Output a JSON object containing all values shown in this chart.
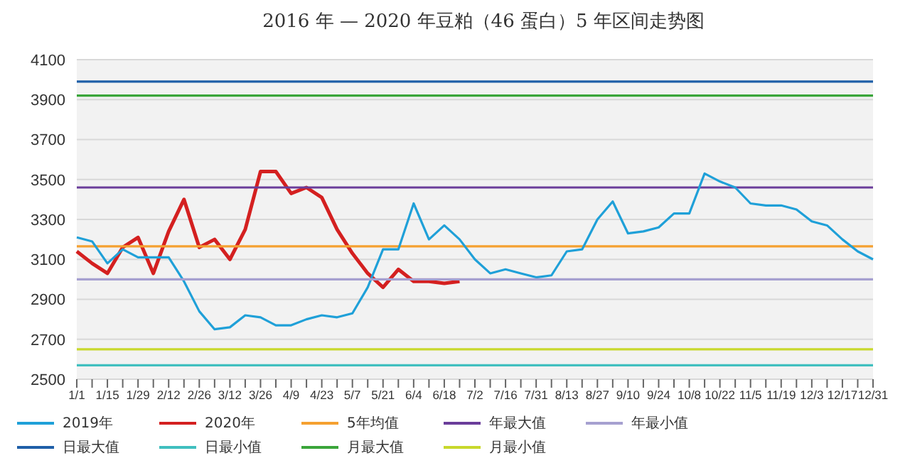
{
  "chart_data": {
    "type": "line",
    "title": "2016 年 — 2020 年豆粕（46 蛋白）5 年区间走势图",
    "categories": [
      "1/1",
      null,
      "1/15",
      null,
      "1/29",
      null,
      "2/12",
      null,
      "2/26",
      null,
      "3/12",
      null,
      "3/26",
      null,
      "4/9",
      null,
      "4/23",
      null,
      "5/7",
      null,
      "5/21",
      null,
      "6/4",
      null,
      "6/18",
      null,
      "7/2",
      null,
      "7/16",
      null,
      "7/31",
      null,
      "8/13",
      null,
      "8/27",
      null,
      "9/10",
      null,
      "9/24",
      null,
      "10/8",
      null,
      "10/22",
      null,
      "11/5",
      null,
      "11/19",
      null,
      "12/3",
      null,
      "12/17",
      null,
      "12/31"
    ],
    "series": [
      {
        "name": "2020年",
        "color": "#d42020",
        "values": [
          3140,
          3080,
          3030,
          3160,
          3210,
          3030,
          3240,
          3400,
          3160,
          3200,
          3100,
          3250,
          3540,
          3540,
          3430,
          3460,
          3410,
          3250,
          3130,
          3030,
          2960,
          3050,
          2990,
          2990,
          2980,
          2990,
          null,
          null,
          null,
          null,
          null,
          null,
          null,
          null,
          null,
          null,
          null,
          null,
          null,
          null,
          null,
          null,
          null,
          null,
          null,
          null,
          null,
          null,
          null,
          null,
          null,
          null,
          null
        ]
      },
      {
        "name": "日最大值",
        "color": "#1f5fa8",
        "values": [
          3990,
          3990,
          3990,
          3990,
          3990,
          3990,
          3990,
          3990,
          3990,
          3990,
          3990,
          3990,
          3990,
          3990,
          3990,
          3990,
          3990,
          3990,
          3990,
          3990,
          3990,
          3990,
          3990,
          3990,
          3990,
          3990,
          3990,
          3990,
          3990,
          3990,
          3990,
          3990,
          3990,
          3990,
          3990,
          3990,
          3990,
          3990,
          3990,
          3990,
          3990,
          3990,
          3990,
          3990,
          3990,
          3990,
          3990,
          3990,
          3990,
          3990,
          3990,
          3990,
          3990
        ]
      },
      {
        "name": "月最大值",
        "color": "#3aa53a",
        "values": [
          3920,
          3920,
          3920,
          3920,
          3920,
          3920,
          3920,
          3920,
          3920,
          3920,
          3920,
          3920,
          3920,
          3920,
          3920,
          3920,
          3920,
          3920,
          3920,
          3920,
          3920,
          3920,
          3920,
          3920,
          3920,
          3920,
          3920,
          3920,
          3920,
          3920,
          3920,
          3920,
          3920,
          3920,
          3920,
          3920,
          3920,
          3920,
          3920,
          3920,
          3920,
          3920,
          3920,
          3920,
          3920,
          3920,
          3920,
          3920,
          3920,
          3920,
          3920,
          3920,
          3920
        ]
      },
      {
        "name": "年最大值",
        "color": "#6a3d9a",
        "values": [
          3460,
          3460,
          3460,
          3460,
          3460,
          3460,
          3460,
          3460,
          3460,
          3460,
          3460,
          3460,
          3460,
          3460,
          3460,
          3460,
          3460,
          3460,
          3460,
          3460,
          3460,
          3460,
          3460,
          3460,
          3460,
          3460,
          3460,
          3460,
          3460,
          3460,
          3460,
          3460,
          3460,
          3460,
          3460,
          3460,
          3460,
          3460,
          3460,
          3460,
          3460,
          3460,
          3460,
          3460,
          3460,
          3460,
          3460,
          3460,
          3460,
          3460,
          3460,
          3460,
          3460
        ]
      },
      {
        "name": "5年均值",
        "color": "#f5a030",
        "values": [
          3165,
          3165,
          3165,
          3165,
          3165,
          3165,
          3165,
          3165,
          3165,
          3165,
          3165,
          3165,
          3165,
          3165,
          3165,
          3165,
          3165,
          3165,
          3165,
          3165,
          3165,
          3165,
          3165,
          3165,
          3165,
          3165,
          3165,
          3165,
          3165,
          3165,
          3165,
          3165,
          3165,
          3165,
          3165,
          3165,
          3165,
          3165,
          3165,
          3165,
          3165,
          3165,
          3165,
          3165,
          3165,
          3165,
          3165,
          3165,
          3165,
          3165,
          3165,
          3165,
          3165
        ]
      },
      {
        "name": "2019年",
        "color": "#1fa0d8",
        "values": [
          3210,
          3190,
          3080,
          3150,
          3110,
          3110,
          3110,
          2990,
          2840,
          2750,
          2760,
          2820,
          2810,
          2770,
          2770,
          2800,
          2820,
          2810,
          2830,
          2960,
          3150,
          3150,
          3380,
          3200,
          3270,
          3200,
          3100,
          3030,
          3050,
          3030,
          3010,
          3020,
          3140,
          3150,
          3300,
          3390,
          3230,
          3240,
          3260,
          3330,
          3330,
          3530,
          3490,
          3460,
          3380,
          3370,
          3370,
          3350,
          3290,
          3270,
          3200,
          3140,
          3100
        ]
      },
      {
        "name": "日最小值",
        "color": "#40bfbf",
        "values": [
          2570,
          2570,
          2570,
          2570,
          2570,
          2570,
          2570,
          2570,
          2570,
          2570,
          2570,
          2570,
          2570,
          2570,
          2570,
          2570,
          2570,
          2570,
          2570,
          2570,
          2570,
          2570,
          2570,
          2570,
          2570,
          2570,
          2570,
          2570,
          2570,
          2570,
          2570,
          2570,
          2570,
          2570,
          2570,
          2570,
          2570,
          2570,
          2570,
          2570,
          2570,
          2570,
          2570,
          2570,
          2570,
          2570,
          2570,
          2570,
          2570,
          2570,
          2570,
          2570,
          2570
        ]
      },
      {
        "name": "月最小值",
        "color": "#c8d82c",
        "values": [
          2650,
          2650,
          2650,
          2650,
          2650,
          2650,
          2650,
          2650,
          2650,
          2650,
          2650,
          2650,
          2650,
          2650,
          2650,
          2650,
          2650,
          2650,
          2650,
          2650,
          2650,
          2650,
          2650,
          2650,
          2650,
          2650,
          2650,
          2650,
          2650,
          2650,
          2650,
          2650,
          2650,
          2650,
          2650,
          2650,
          2650,
          2650,
          2650,
          2650,
          2650,
          2650,
          2650,
          2650,
          2650,
          2650,
          2650,
          2650,
          2650,
          2650,
          2650,
          2650,
          2650
        ]
      },
      {
        "name": "年最小值",
        "color": "#a6a0d0",
        "values": [
          3000,
          3000,
          3000,
          3000,
          3000,
          3000,
          3000,
          3000,
          3000,
          3000,
          3000,
          3000,
          3000,
          3000,
          3000,
          3000,
          3000,
          3000,
          3000,
          3000,
          3000,
          3000,
          3000,
          3000,
          3000,
          3000,
          3000,
          3000,
          3000,
          3000,
          3000,
          3000,
          3000,
          3000,
          3000,
          3000,
          3000,
          3000,
          3000,
          3000,
          3000,
          3000,
          3000,
          3000,
          3000,
          3000,
          3000,
          3000,
          3000,
          3000,
          3000,
          3000,
          3000
        ]
      }
    ],
    "ylim": [
      2500,
      4100
    ],
    "yticks": [
      2500,
      2700,
      2900,
      3100,
      3300,
      3500,
      3700,
      3900,
      4100
    ],
    "grid": "y",
    "legend": "bottom",
    "marker": "none",
    "line_style": "solid"
  }
}
